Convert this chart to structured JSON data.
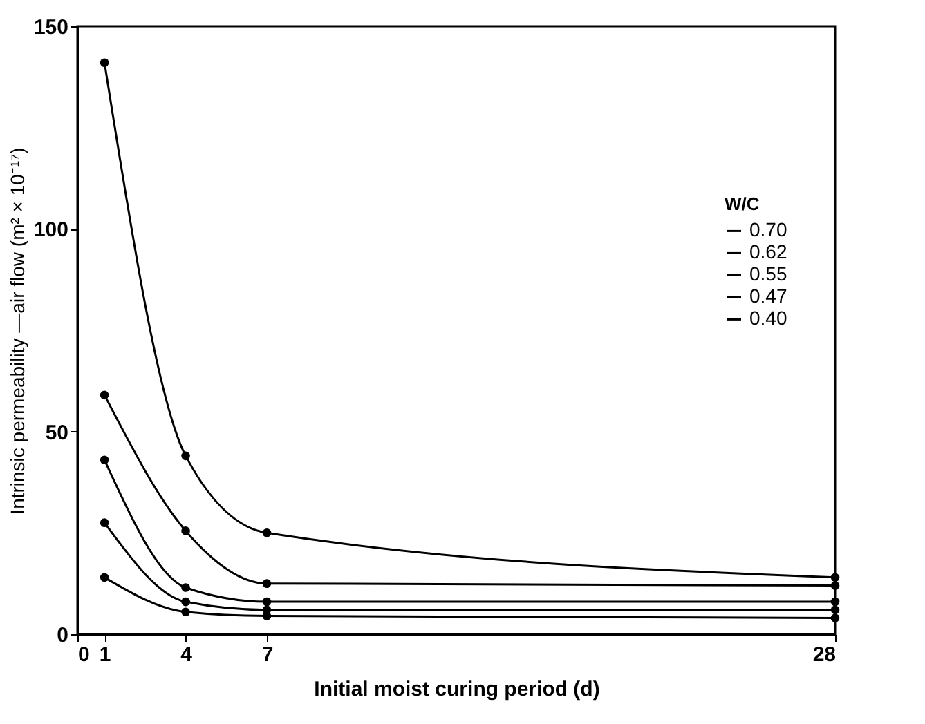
{
  "chart_data": {
    "type": "line",
    "xlabel": "Initial moist curing period (d)",
    "ylabel": "Intrinsic permeability —air flow (m² × 10⁻¹⁷)",
    "legend_title": "W/C",
    "x": [
      1,
      4,
      7,
      28
    ],
    "series": [
      {
        "name": "0.70",
        "color": "#000000",
        "values": [
          141,
          44,
          25,
          14
        ]
      },
      {
        "name": "0.62",
        "color": "#000000",
        "values": [
          59,
          25.5,
          12.5,
          12
        ]
      },
      {
        "name": "0.55",
        "color": "#000000",
        "values": [
          43,
          11.5,
          8,
          8
        ]
      },
      {
        "name": "0.47",
        "color": "#000000",
        "values": [
          27.5,
          8,
          6,
          6
        ]
      },
      {
        "name": "0.40",
        "color": "#000000",
        "values": [
          14,
          5.5,
          4.5,
          4
        ]
      }
    ],
    "xlim": [
      0,
      28
    ],
    "xticks": [
      0,
      1,
      4,
      7,
      28
    ],
    "ylim": [
      0,
      150
    ],
    "yticks": [
      0,
      50,
      100,
      150
    ],
    "grid": false,
    "legend": "right",
    "marker": "circle",
    "line_style": "solid"
  }
}
